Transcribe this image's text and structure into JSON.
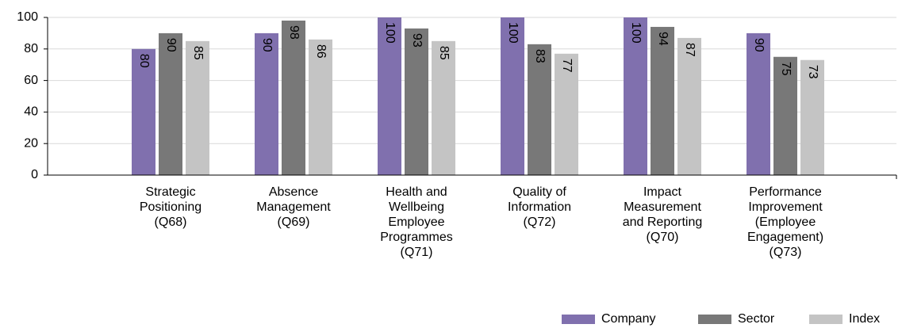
{
  "chart_data": {
    "type": "bar",
    "categories": [
      "Strategic Positioning (Q68)",
      "Absence Management (Q69)",
      "Health and Wellbeing Employee Programmes (Q71)",
      "Quality of Information (Q72)",
      "Impact Measurement and Reporting (Q70)",
      "Performance Improvement (Employee Engagement) (Q73)"
    ],
    "series": [
      {
        "name": "Company",
        "color": "#8070ae",
        "values": [
          80,
          90,
          100,
          100,
          100,
          90
        ]
      },
      {
        "name": "Sector",
        "color": "#787878",
        "values": [
          90,
          98,
          93,
          83,
          94,
          75
        ]
      },
      {
        "name": "Index",
        "color": "#c4c4c4",
        "values": [
          85,
          86,
          85,
          77,
          87,
          73
        ]
      }
    ],
    "ylim": [
      0,
      100
    ],
    "yticks": [
      0,
      20,
      40,
      60,
      80,
      100
    ],
    "grid": true,
    "legend": "bottom-right"
  }
}
